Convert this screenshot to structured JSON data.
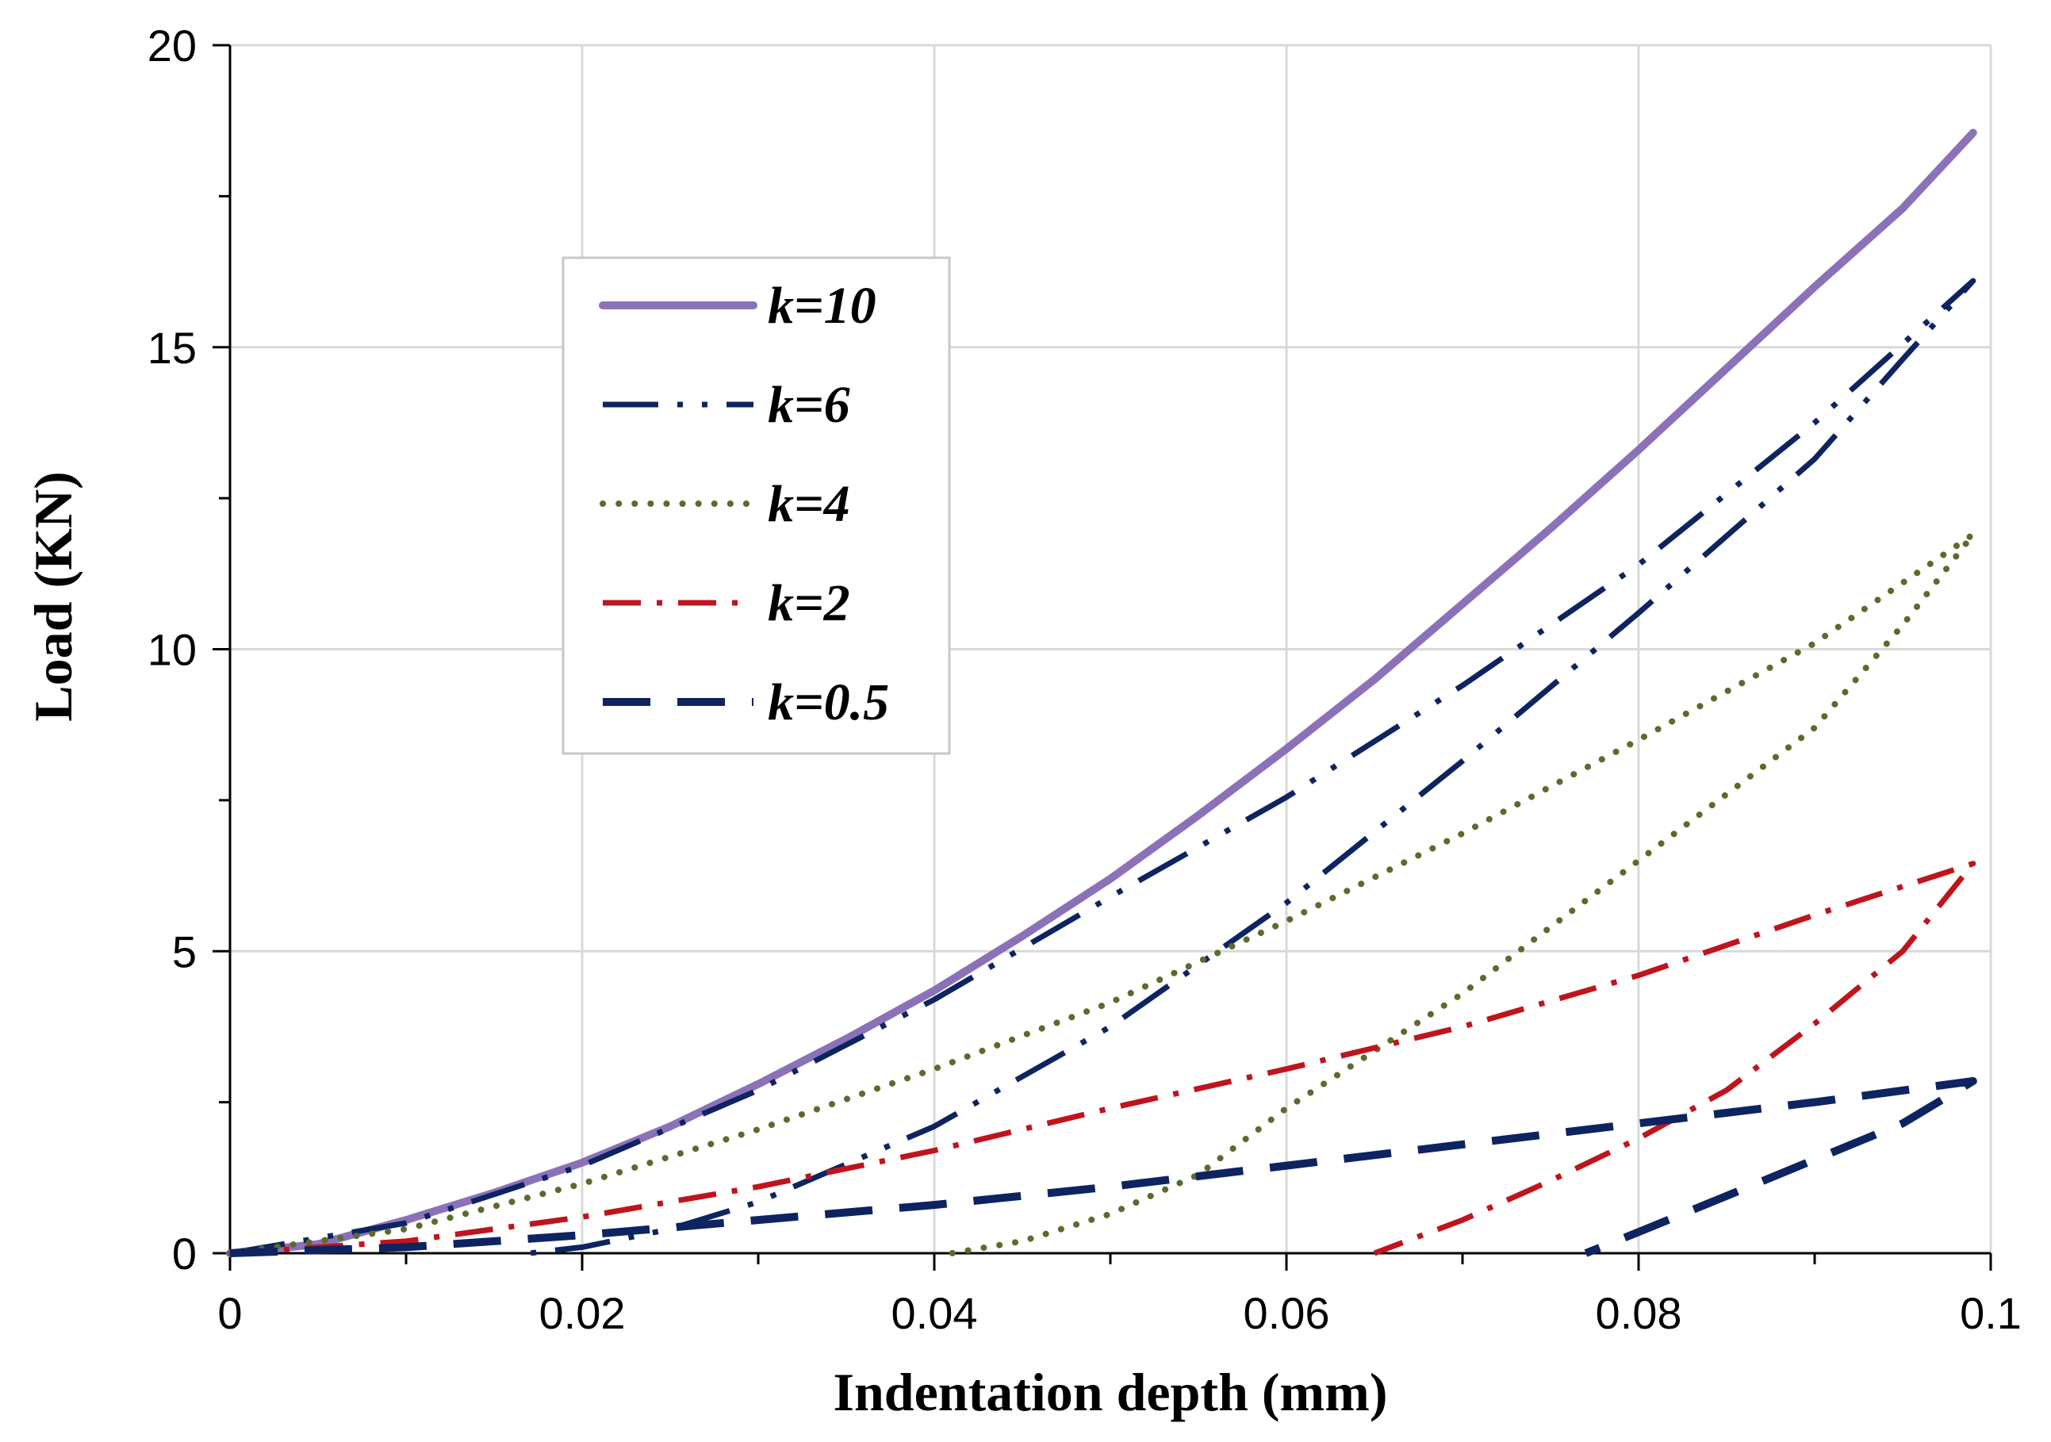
{
  "chart_data": {
    "type": "line",
    "title": "",
    "xlabel": "Indentation depth (mm)",
    "ylabel": "Load (KN)",
    "xlim": [
      0,
      0.1
    ],
    "ylim": [
      0,
      20
    ],
    "x_ticks": [
      "0",
      "0.02",
      "0.04",
      "0.06",
      "0.08",
      "0.1"
    ],
    "y_ticks": [
      "0",
      "5",
      "10",
      "15",
      "20"
    ],
    "grid": true,
    "legend_position": "upper-left inside plot",
    "series": [
      {
        "name": "k=10",
        "color": "#8B72B8",
        "style": "solid",
        "points": [
          [
            0,
            0
          ],
          [
            0.005,
            0.15
          ],
          [
            0.01,
            0.55
          ],
          [
            0.015,
            1.0
          ],
          [
            0.02,
            1.5
          ],
          [
            0.025,
            2.1
          ],
          [
            0.03,
            2.8
          ],
          [
            0.035,
            3.55
          ],
          [
            0.04,
            4.35
          ],
          [
            0.045,
            5.25
          ],
          [
            0.05,
            6.2
          ],
          [
            0.055,
            7.25
          ],
          [
            0.06,
            8.35
          ],
          [
            0.065,
            9.5
          ],
          [
            0.07,
            10.75
          ],
          [
            0.075,
            12.0
          ],
          [
            0.08,
            13.3
          ],
          [
            0.085,
            14.65
          ],
          [
            0.09,
            16.0
          ],
          [
            0.095,
            17.3
          ],
          [
            0.099,
            18.55
          ]
        ]
      },
      {
        "name": "k=6",
        "color": "#0D2461",
        "style": "dash-dot-dot",
        "points": [
          [
            0,
            0
          ],
          [
            0.01,
            0.5
          ],
          [
            0.02,
            1.45
          ],
          [
            0.03,
            2.7
          ],
          [
            0.04,
            4.2
          ],
          [
            0.05,
            5.9
          ],
          [
            0.06,
            7.55
          ],
          [
            0.07,
            9.4
          ],
          [
            0.08,
            11.4
          ],
          [
            0.09,
            13.75
          ],
          [
            0.099,
            16.1
          ],
          [
            0.095,
            14.8
          ],
          [
            0.09,
            13.15
          ],
          [
            0.08,
            10.6
          ],
          [
            0.07,
            8.15
          ],
          [
            0.06,
            5.8
          ],
          [
            0.05,
            3.75
          ],
          [
            0.04,
            2.1
          ],
          [
            0.03,
            0.85
          ],
          [
            0.025,
            0.4
          ],
          [
            0.02,
            0.1
          ],
          [
            0.017,
            0
          ]
        ]
      },
      {
        "name": "k=4",
        "color": "#5B6B2E",
        "style": "dotted",
        "points": [
          [
            0,
            0
          ],
          [
            0.01,
            0.4
          ],
          [
            0.02,
            1.15
          ],
          [
            0.03,
            2.05
          ],
          [
            0.04,
            3.05
          ],
          [
            0.05,
            4.15
          ],
          [
            0.06,
            5.5
          ],
          [
            0.07,
            6.95
          ],
          [
            0.08,
            8.5
          ],
          [
            0.09,
            10.1
          ],
          [
            0.099,
            11.9
          ],
          [
            0.095,
            10.4
          ],
          [
            0.09,
            8.7
          ],
          [
            0.08,
            6.5
          ],
          [
            0.07,
            4.3
          ],
          [
            0.06,
            2.4
          ],
          [
            0.055,
            1.3
          ],
          [
            0.05,
            0.65
          ],
          [
            0.045,
            0.2
          ],
          [
            0.041,
            0
          ]
        ]
      },
      {
        "name": "k=2",
        "color": "#C0141C",
        "style": "dash-dot",
        "points": [
          [
            0,
            0
          ],
          [
            0.01,
            0.2
          ],
          [
            0.02,
            0.6
          ],
          [
            0.03,
            1.1
          ],
          [
            0.04,
            1.7
          ],
          [
            0.05,
            2.4
          ],
          [
            0.06,
            3.05
          ],
          [
            0.07,
            3.75
          ],
          [
            0.08,
            4.6
          ],
          [
            0.09,
            5.6
          ],
          [
            0.099,
            6.45
          ],
          [
            0.095,
            5.0
          ],
          [
            0.09,
            3.8
          ],
          [
            0.085,
            2.7
          ],
          [
            0.08,
            1.9
          ],
          [
            0.075,
            1.2
          ],
          [
            0.07,
            0.55
          ],
          [
            0.065,
            0
          ]
        ]
      },
      {
        "name": "k=0.5",
        "color": "#0D2461",
        "style": "dashed",
        "points": [
          [
            0,
            0
          ],
          [
            0.01,
            0.1
          ],
          [
            0.02,
            0.3
          ],
          [
            0.03,
            0.55
          ],
          [
            0.04,
            0.8
          ],
          [
            0.05,
            1.1
          ],
          [
            0.06,
            1.45
          ],
          [
            0.07,
            1.8
          ],
          [
            0.08,
            2.15
          ],
          [
            0.09,
            2.5
          ],
          [
            0.099,
            2.85
          ],
          [
            0.095,
            2.15
          ],
          [
            0.09,
            1.55
          ],
          [
            0.085,
            0.95
          ],
          [
            0.08,
            0.35
          ],
          [
            0.077,
            0
          ]
        ]
      }
    ]
  }
}
